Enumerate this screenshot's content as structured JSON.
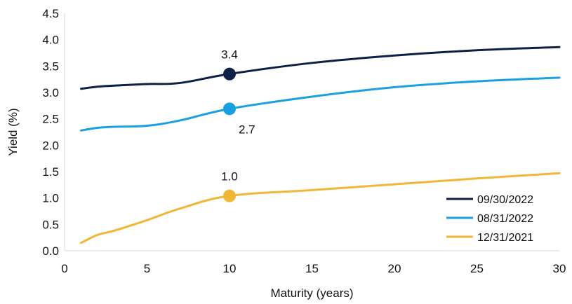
{
  "chart_data": {
    "type": "line",
    "title": "",
    "xlabel": "Maturity (years)",
    "ylabel": "Yield (%)",
    "xlim": [
      0,
      30
    ],
    "ylim": [
      0,
      4.5
    ],
    "x_ticks": [
      "0",
      "5",
      "10",
      "15",
      "20",
      "25",
      "30"
    ],
    "y_ticks": [
      "0.0",
      "0.5",
      "1.0",
      "1.5",
      "2.0",
      "2.5",
      "3.0",
      "3.5",
      "4.0",
      "4.5"
    ],
    "grid": false,
    "legend_position": "bottom-right",
    "series": [
      {
        "name": "09/30/2022",
        "color": "#0d2146",
        "x": [
          1,
          2,
          3,
          5,
          7,
          10,
          15,
          20,
          25,
          30
        ],
        "values": [
          3.07,
          3.11,
          3.13,
          3.16,
          3.18,
          3.35,
          3.56,
          3.7,
          3.8,
          3.86
        ],
        "marker": {
          "x": 10,
          "y": 3.35,
          "label": "3.4",
          "label_position": "above"
        }
      },
      {
        "name": "08/31/2022",
        "color": "#1a9fe0",
        "x": [
          1,
          2,
          3,
          5,
          7,
          10,
          15,
          20,
          25,
          30
        ],
        "values": [
          2.28,
          2.33,
          2.35,
          2.37,
          2.47,
          2.69,
          2.92,
          3.1,
          3.21,
          3.28
        ],
        "marker": {
          "x": 10,
          "y": 2.69,
          "label": "2.7",
          "label_position": "below-right"
        }
      },
      {
        "name": "12/31/2021",
        "color": "#f2b636",
        "x": [
          1,
          2,
          3,
          5,
          7,
          10,
          15,
          20,
          25,
          30
        ],
        "values": [
          0.15,
          0.3,
          0.38,
          0.58,
          0.8,
          1.04,
          1.15,
          1.26,
          1.37,
          1.47
        ],
        "marker": {
          "x": 10,
          "y": 1.04,
          "label": "1.0",
          "label_position": "above"
        }
      }
    ]
  }
}
